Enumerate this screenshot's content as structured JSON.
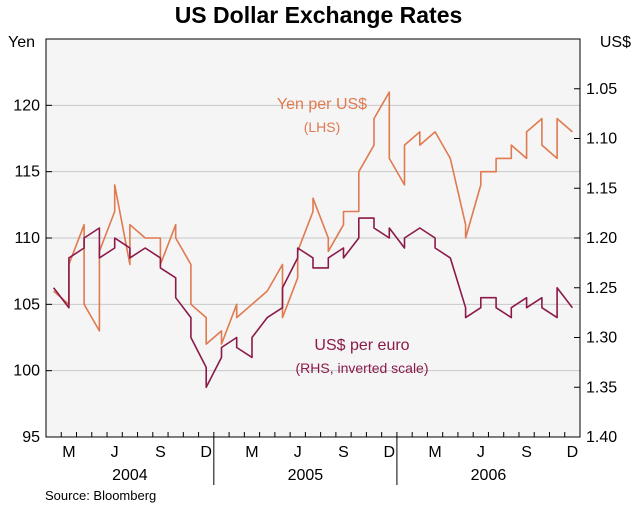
{
  "chart_data": {
    "type": "line",
    "title": "US Dollar Exchange Rates",
    "left_axis": {
      "unit": "Yen",
      "range": [
        95,
        125
      ],
      "ticks": [
        95,
        100,
        105,
        110,
        115,
        120
      ]
    },
    "right_axis": {
      "unit": "US$",
      "range": [
        1.4,
        1.0
      ],
      "inverted": true,
      "ticks": [
        1.05,
        1.1,
        1.15,
        1.2,
        1.25,
        1.3,
        1.35,
        1.4
      ]
    },
    "tick_labels_left": [
      "95",
      "100",
      "105",
      "110",
      "115",
      "120"
    ],
    "tick_labels_right": [
      "1.05",
      "1.10",
      "1.15",
      "1.20",
      "1.25",
      "1.30",
      "1.35",
      "1.40"
    ],
    "x_months": [
      "M",
      "J",
      "S",
      "D",
      "M",
      "J",
      "S",
      "D",
      "M",
      "J",
      "S",
      "D"
    ],
    "x_years": [
      "2004",
      "2005",
      "2006"
    ],
    "grid": true,
    "source": "Source: Bloomberg",
    "series": [
      {
        "name": "Yen per US$",
        "note": "(LHS)",
        "axis": "left",
        "color": "#e07a50",
        "x": [
          "2004-02",
          "2004-03",
          "2004-03",
          "2004-04",
          "2004-04",
          "2004-05",
          "2004-05",
          "2004-06",
          "2004-06",
          "2004-07",
          "2004-07",
          "2004-08",
          "2004-09",
          "2004-09",
          "2004-10",
          "2004-10",
          "2004-11",
          "2004-11",
          "2004-12",
          "2004-12",
          "2005-01",
          "2005-01",
          "2005-02",
          "2005-02",
          "2005-03",
          "2005-03",
          "2005-04",
          "2005-05",
          "2005-05",
          "2005-06",
          "2005-06",
          "2005-07",
          "2005-07",
          "2005-08",
          "2005-08",
          "2005-09",
          "2005-09",
          "2005-10",
          "2005-10",
          "2005-11",
          "2005-11",
          "2005-12",
          "2005-12",
          "2006-01",
          "2006-01",
          "2006-02",
          "2006-02",
          "2006-03",
          "2006-03",
          "2006-04",
          "2006-05",
          "2006-05",
          "2006-06",
          "2006-06",
          "2006-07",
          "2006-07",
          "2006-08",
          "2006-08",
          "2006-09",
          "2006-09",
          "2006-10",
          "2006-10",
          "2006-11",
          "2006-11",
          "2006-12"
        ],
        "values": [
          106,
          105,
          108,
          111,
          105,
          103,
          109,
          112,
          114,
          108,
          111,
          110,
          110,
          108,
          111,
          110,
          108,
          105,
          104,
          102,
          103,
          102,
          105,
          104,
          105,
          105,
          106,
          108,
          104,
          107,
          109,
          112,
          113,
          110,
          109,
          111,
          112,
          112,
          115,
          117,
          119,
          121,
          116,
          114,
          117,
          118,
          117,
          118,
          118,
          116,
          111,
          110,
          114,
          115,
          115,
          116,
          116,
          117,
          116,
          118,
          119,
          117,
          116,
          119,
          118
        ]
      },
      {
        "name": "US$ per euro",
        "note": "(RHS, inverted scale)",
        "axis": "right",
        "color": "#8b1a4a",
        "x": [
          "2004-02",
          "2004-03",
          "2004-03",
          "2004-04",
          "2004-04",
          "2004-05",
          "2004-05",
          "2004-06",
          "2004-06",
          "2004-07",
          "2004-07",
          "2004-08",
          "2004-09",
          "2004-09",
          "2004-10",
          "2004-10",
          "2004-11",
          "2004-11",
          "2004-12",
          "2004-12",
          "2005-01",
          "2005-01",
          "2005-02",
          "2005-02",
          "2005-03",
          "2005-03",
          "2005-04",
          "2005-05",
          "2005-05",
          "2005-06",
          "2005-06",
          "2005-07",
          "2005-07",
          "2005-08",
          "2005-08",
          "2005-09",
          "2005-09",
          "2005-10",
          "2005-10",
          "2005-11",
          "2005-11",
          "2005-12",
          "2005-12",
          "2006-01",
          "2006-01",
          "2006-02",
          "2006-02",
          "2006-03",
          "2006-03",
          "2006-04",
          "2006-05",
          "2006-05",
          "2006-06",
          "2006-06",
          "2006-07",
          "2006-07",
          "2006-08",
          "2006-08",
          "2006-09",
          "2006-09",
          "2006-10",
          "2006-10",
          "2006-11",
          "2006-11",
          "2006-12"
        ],
        "values": [
          1.25,
          1.27,
          1.22,
          1.21,
          1.2,
          1.19,
          1.22,
          1.21,
          1.2,
          1.21,
          1.22,
          1.21,
          1.22,
          1.23,
          1.24,
          1.26,
          1.28,
          1.3,
          1.33,
          1.35,
          1.32,
          1.31,
          1.3,
          1.31,
          1.32,
          1.3,
          1.28,
          1.27,
          1.25,
          1.22,
          1.21,
          1.22,
          1.23,
          1.23,
          1.22,
          1.21,
          1.22,
          1.2,
          1.18,
          1.18,
          1.19,
          1.2,
          1.19,
          1.21,
          1.2,
          1.19,
          1.19,
          1.2,
          1.21,
          1.22,
          1.27,
          1.28,
          1.27,
          1.26,
          1.26,
          1.27,
          1.28,
          1.27,
          1.26,
          1.27,
          1.26,
          1.27,
          1.28,
          1.25,
          1.27
        ]
      }
    ]
  }
}
